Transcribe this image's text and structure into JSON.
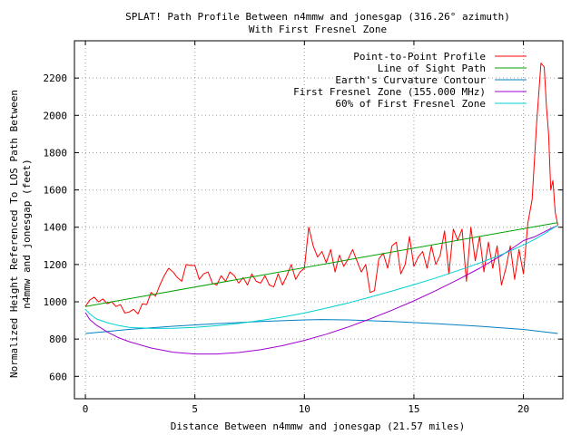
{
  "chart_data": {
    "type": "line",
    "title": "SPLAT! Path Profile Between n4mmw and jonesgap (316.26° azimuth)",
    "subtitle": "With First Fresnel Zone",
    "xlabel": "Distance Between n4mmw and jonesgap (21.57 miles)",
    "ylabel_lines": [
      "Normalized Height Referenced To LOS Path Between",
      "n4mmw and jonesgap (feet)"
    ],
    "xlim": [
      -0.5,
      21.8
    ],
    "ylim": [
      480,
      2400
    ],
    "x_ticks": [
      0,
      5,
      10,
      15,
      20
    ],
    "y_ticks": [
      600,
      800,
      1000,
      1200,
      1400,
      1600,
      1800,
      2000,
      2200
    ],
    "grid": true,
    "legend_position": "top-right",
    "series": [
      {
        "name": "Point-to-Point Profile",
        "color": "#ff0000",
        "x": [
          0,
          0.2,
          0.4,
          0.6,
          0.8,
          1.0,
          1.2,
          1.4,
          1.6,
          1.8,
          2.0,
          2.2,
          2.4,
          2.6,
          2.8,
          3.0,
          3.2,
          3.4,
          3.6,
          3.8,
          4.0,
          4.2,
          4.4,
          4.6,
          4.8,
          5.0,
          5.2,
          5.4,
          5.6,
          5.8,
          6.0,
          6.2,
          6.4,
          6.6,
          6.8,
          7.0,
          7.2,
          7.4,
          7.6,
          7.8,
          8.0,
          8.2,
          8.4,
          8.6,
          8.8,
          9.0,
          9.2,
          9.4,
          9.6,
          9.8,
          10.0,
          10.2,
          10.4,
          10.6,
          10.8,
          11.0,
          11.2,
          11.4,
          11.6,
          11.8,
          12.0,
          12.2,
          12.4,
          12.6,
          12.8,
          13.0,
          13.2,
          13.4,
          13.6,
          13.8,
          14.0,
          14.2,
          14.4,
          14.6,
          14.8,
          15.0,
          15.2,
          15.4,
          15.6,
          15.8,
          16.0,
          16.2,
          16.4,
          16.6,
          16.8,
          17.0,
          17.2,
          17.4,
          17.6,
          17.8,
          18.0,
          18.2,
          18.4,
          18.6,
          18.8,
          19.0,
          19.2,
          19.4,
          19.6,
          19.8,
          20.0,
          20.2,
          20.4,
          20.6,
          20.8,
          20.95,
          21.05,
          21.15,
          21.25,
          21.35,
          21.45,
          21.57
        ],
        "y": [
          975,
          1010,
          1025,
          1000,
          1015,
          990,
          1000,
          975,
          985,
          940,
          945,
          960,
          935,
          990,
          985,
          1050,
          1030,
          1090,
          1140,
          1180,
          1160,
          1130,
          1110,
          1200,
          1195,
          1195,
          1120,
          1150,
          1160,
          1100,
          1090,
          1140,
          1110,
          1160,
          1140,
          1100,
          1130,
          1090,
          1150,
          1110,
          1100,
          1140,
          1090,
          1080,
          1150,
          1090,
          1140,
          1200,
          1120,
          1160,
          1180,
          1400,
          1300,
          1240,
          1270,
          1210,
          1280,
          1160,
          1250,
          1190,
          1230,
          1280,
          1220,
          1160,
          1200,
          1050,
          1060,
          1230,
          1260,
          1180,
          1300,
          1320,
          1150,
          1200,
          1350,
          1190,
          1240,
          1270,
          1180,
          1300,
          1200,
          1250,
          1380,
          1150,
          1390,
          1330,
          1390,
          1110,
          1400,
          1220,
          1350,
          1160,
          1320,
          1180,
          1300,
          1090,
          1180,
          1300,
          1120,
          1280,
          1150,
          1420,
          1550,
          1950,
          2280,
          2260,
          2050,
          1900,
          1600,
          1650,
          1480,
          1410
        ]
      },
      {
        "name": "Line of Sight Path",
        "color": "#00a000",
        "x": [
          0,
          21.57
        ],
        "y": [
          975,
          1425
        ]
      },
      {
        "name": "Earth's Curvature Contour",
        "color": "#0080c0",
        "x": [
          0,
          2,
          4,
          6,
          8,
          10,
          10.78,
          12,
          14,
          16,
          18,
          20,
          21.57
        ],
        "y": [
          830,
          852,
          869,
          883,
          894,
          903,
          905,
          903,
          894,
          883,
          869,
          852,
          830
        ]
      },
      {
        "name": "First Fresnel Zone (155.000 MHz)",
        "color": "#a000d0",
        "x": [
          0,
          0.2,
          0.5,
          1,
          1.5,
          2,
          3,
          4,
          5,
          6,
          7,
          8,
          9,
          10,
          11,
          12,
          13,
          14,
          15,
          16,
          17,
          18,
          19,
          19.5,
          20,
          20.5,
          21,
          21.3,
          21.57
        ],
        "y": [
          942,
          905,
          875,
          838,
          808,
          786,
          752,
          730,
          720,
          720,
          728,
          743,
          765,
          793,
          826,
          865,
          908,
          955,
          1005,
          1060,
          1118,
          1180,
          1249,
          1287,
          1328,
          1348,
          1378,
          1396,
          1410
        ]
      },
      {
        "name": "60% of First Fresnel Zone",
        "color": "#00d0d0",
        "x": [
          0,
          0.2,
          0.5,
          1,
          1.5,
          2,
          3,
          4,
          5,
          6,
          7,
          8,
          9,
          10,
          11,
          12,
          13,
          14,
          15,
          16,
          17,
          18,
          19,
          19.5,
          20,
          20.5,
          21,
          21.3,
          21.57
        ],
        "y": [
          960,
          935,
          908,
          888,
          873,
          863,
          857,
          858,
          863,
          872,
          884,
          900,
          918,
          940,
          966,
          994,
          1025,
          1058,
          1092,
          1128,
          1167,
          1208,
          1253,
          1278,
          1305,
          1334,
          1368,
          1392,
          1410
        ]
      }
    ]
  }
}
